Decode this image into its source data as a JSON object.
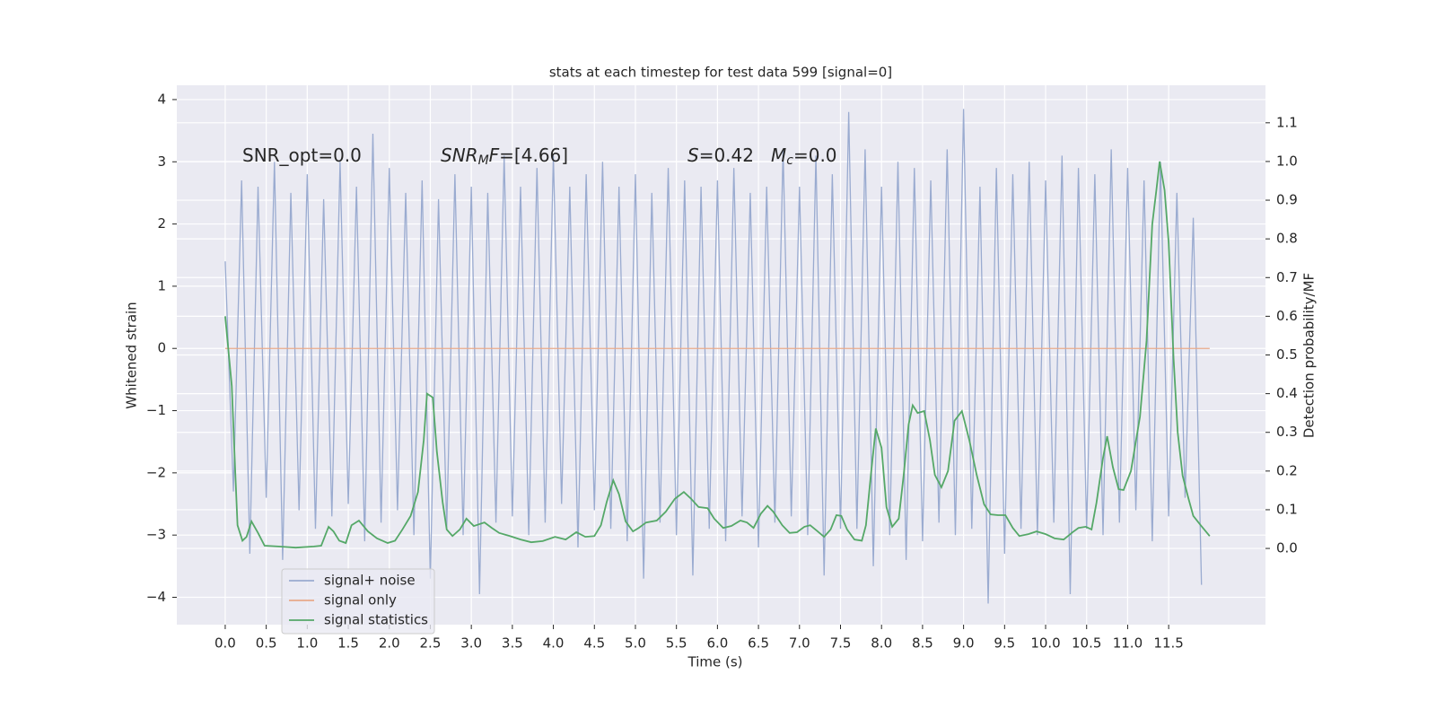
{
  "chart_data": {
    "type": "line",
    "title": "stats at each timestep for test data 599 [signal=0]",
    "x_label": "Time (s)",
    "y_label": "Whitened strain",
    "y2_label": "Detection probability/MF",
    "xlim": [
      -0.59,
      12.68
    ],
    "ylim": [
      -4.44,
      4.23
    ],
    "y2lim": [
      -0.197,
      1.197
    ],
    "xticks": [
      {
        "value": 0,
        "label": "0.0"
      },
      0.5,
      {
        "value": 1,
        "label": "1.0"
      },
      1.5,
      {
        "value": 2,
        "label": "2.0"
      },
      2.5,
      {
        "value": 3,
        "label": "3.0"
      },
      3.5,
      {
        "value": 4,
        "label": "4.0"
      },
      4.5,
      {
        "value": 5,
        "label": "5.0"
      },
      5.5,
      {
        "value": 6,
        "label": "6.0"
      },
      6.5,
      {
        "value": 7,
        "label": "7.0"
      },
      7.5,
      {
        "value": 8,
        "label": "8.0"
      },
      8.5,
      {
        "value": 9,
        "label": "9.0"
      },
      9.5,
      {
        "value": 10,
        "label": "10.0"
      },
      10.5,
      {
        "value": 11,
        "label": "11.0"
      },
      11.5
    ],
    "yticks": [
      {
        "value": -4,
        "label": "−4"
      },
      {
        "value": -3,
        "label": "−3"
      },
      {
        "value": -2,
        "label": "−2"
      },
      {
        "value": -1,
        "label": "−1"
      },
      0,
      1,
      2,
      3,
      4
    ],
    "y2ticks": [
      {
        "value": 0,
        "label": "0.0"
      },
      0.1,
      0.2,
      0.3,
      0.4,
      0.5,
      0.6,
      0.7,
      0.8,
      0.9,
      {
        "value": 1,
        "label": "1.0"
      },
      1.1
    ],
    "grid": true,
    "legend": "lower left",
    "annotations": [
      {
        "parts": [
          {
            "text": "SNR_opt=0.0"
          }
        ]
      },
      {
        "parts": [
          {
            "text": "SNR",
            "italic": true
          },
          {
            "text": "M",
            "italic": true,
            "sub": true
          },
          {
            "text": "F",
            "italic": true
          },
          {
            "text": "=[4.66]"
          }
        ]
      },
      {
        "parts": [
          {
            "text": "S",
            "italic": true
          },
          {
            "text": "=0.42"
          }
        ]
      },
      {
        "parts": [
          {
            "text": "M",
            "italic": true
          },
          {
            "text": "c",
            "italic": true,
            "sub": true
          },
          {
            "text": "=0.0"
          }
        ]
      }
    ],
    "series": [
      {
        "name": "signal+ noise",
        "color": "#9aabd0",
        "axis": "y",
        "x": [
          0.0,
          0.1,
          0.2,
          0.3,
          0.4,
          0.5,
          0.6,
          0.7,
          0.8,
          0.9,
          1.0,
          1.1,
          1.2,
          1.3,
          1.4,
          1.5,
          1.6,
          1.7,
          1.8,
          1.9,
          2.0,
          2.1,
          2.2,
          2.3,
          2.4,
          2.5,
          2.6,
          2.7,
          2.8,
          2.9,
          3.0,
          3.1,
          3.2,
          3.3,
          3.4,
          3.5,
          3.6,
          3.7,
          3.8,
          3.9,
          4.0,
          4.1,
          4.2,
          4.3,
          4.4,
          4.5,
          4.6,
          4.7,
          4.8,
          4.9,
          5.0,
          5.1,
          5.2,
          5.3,
          5.4,
          5.5,
          5.6,
          5.7,
          5.8,
          5.9,
          6.0,
          6.1,
          6.2,
          6.3,
          6.4,
          6.5,
          6.6,
          6.7,
          6.8,
          6.9,
          7.0,
          7.1,
          7.2,
          7.3,
          7.4,
          7.5,
          7.6,
          7.7,
          7.8,
          7.9,
          8.0,
          8.1,
          8.2,
          8.3,
          8.4,
          8.5,
          8.6,
          8.7,
          8.8,
          8.9,
          9.0,
          9.1,
          9.2,
          9.3,
          9.4,
          9.5,
          9.6,
          9.7,
          9.8,
          9.9,
          10.0,
          10.1,
          10.2,
          10.3,
          10.4,
          10.5,
          10.6,
          10.7,
          10.8,
          10.9,
          11.0,
          11.1,
          11.2,
          11.3,
          11.4,
          11.5,
          11.6,
          11.7,
          11.8,
          11.9
        ],
        "values": [
          1.4,
          -2.3,
          2.7,
          -3.3,
          2.6,
          -2.4,
          3.0,
          -3.4,
          2.5,
          -2.6,
          2.8,
          -2.9,
          2.4,
          -2.7,
          3.0,
          -2.5,
          2.6,
          -3.1,
          3.45,
          -2.8,
          2.9,
          -2.6,
          2.5,
          -3.0,
          2.7,
          -3.7,
          2.4,
          -2.9,
          2.8,
          -3.0,
          2.6,
          -3.95,
          2.5,
          -2.8,
          3.1,
          -2.7,
          2.6,
          -3.0,
          2.9,
          -2.8,
          3.1,
          -2.5,
          2.6,
          -3.2,
          2.8,
          -2.6,
          3.0,
          -2.9,
          2.6,
          -3.1,
          2.8,
          -3.7,
          2.5,
          -2.8,
          2.9,
          -3.0,
          2.7,
          -3.65,
          2.6,
          -2.9,
          2.7,
          -3.1,
          2.9,
          -2.7,
          2.5,
          -3.2,
          2.6,
          -2.8,
          3.2,
          -2.7,
          2.6,
          -3.0,
          3.1,
          -3.65,
          2.8,
          -2.9,
          3.8,
          -2.9,
          3.2,
          -3.5,
          2.6,
          -3.0,
          3.0,
          -3.4,
          2.9,
          -3.1,
          2.7,
          -2.8,
          3.2,
          -3.0,
          3.85,
          -2.9,
          2.6,
          -4.1,
          2.9,
          -3.3,
          2.8,
          -2.9,
          3.0,
          -3.0,
          2.7,
          -2.8,
          3.1,
          -3.95,
          2.9,
          -2.9,
          2.8,
          -3.0,
          3.2,
          -2.8,
          2.9,
          -2.6,
          2.7,
          -3.1,
          3.0,
          -2.7,
          2.5,
          -2.4,
          2.1,
          -3.8
        ]
      },
      {
        "name": "signal only",
        "color": "#e8a98a",
        "axis": "y",
        "x": [
          0.0,
          12.0
        ],
        "values": [
          0,
          0
        ]
      },
      {
        "name": "signal statistics",
        "color": "#55a868",
        "axis": "y2",
        "x": [
          0.0,
          0.08,
          0.12,
          0.15,
          0.21,
          0.26,
          0.32,
          0.4,
          0.48,
          0.65,
          0.86,
          1.08,
          1.17,
          1.26,
          1.32,
          1.39,
          1.47,
          1.54,
          1.63,
          1.74,
          1.85,
          1.98,
          2.07,
          2.16,
          2.26,
          2.35,
          2.42,
          2.46,
          2.53,
          2.58,
          2.65,
          2.7,
          2.77,
          2.86,
          2.94,
          3.03,
          3.16,
          3.25,
          3.34,
          3.47,
          3.6,
          3.73,
          3.87,
          4.02,
          4.15,
          4.28,
          4.39,
          4.5,
          4.58,
          4.65,
          4.73,
          4.8,
          4.88,
          4.97,
          5.04,
          5.13,
          5.26,
          5.37,
          5.48,
          5.59,
          5.68,
          5.77,
          5.88,
          5.96,
          6.07,
          6.17,
          6.28,
          6.36,
          6.44,
          6.53,
          6.61,
          6.68,
          6.79,
          6.88,
          6.97,
          7.06,
          7.13,
          7.21,
          7.3,
          7.38,
          7.45,
          7.51,
          7.58,
          7.67,
          7.76,
          7.81,
          7.87,
          7.93,
          8.0,
          8.06,
          8.13,
          8.21,
          8.27,
          8.33,
          8.38,
          8.44,
          8.52,
          8.59,
          8.65,
          8.73,
          8.81,
          8.89,
          8.98,
          9.07,
          9.16,
          9.25,
          9.33,
          9.42,
          9.51,
          9.6,
          9.68,
          9.79,
          9.89,
          10.0,
          10.11,
          10.22,
          10.33,
          10.4,
          10.49,
          10.56,
          10.62,
          10.7,
          10.75,
          10.82,
          10.89,
          10.95,
          11.04,
          11.15,
          11.23,
          11.3,
          11.35,
          11.39,
          11.45,
          11.5,
          11.56,
          11.61,
          11.67,
          11.74,
          11.8,
          11.89,
          12.0
        ],
        "values": [
          0.6,
          0.42,
          0.21,
          0.06,
          0.02,
          0.03,
          0.07,
          0.04,
          0.007,
          0.005,
          0.002,
          0.005,
          0.007,
          0.056,
          0.044,
          0.02,
          0.014,
          0.06,
          0.072,
          0.044,
          0.026,
          0.014,
          0.02,
          0.049,
          0.084,
          0.146,
          0.28,
          0.4,
          0.39,
          0.25,
          0.12,
          0.049,
          0.032,
          0.049,
          0.077,
          0.058,
          0.067,
          0.053,
          0.04,
          0.032,
          0.023,
          0.016,
          0.019,
          0.03,
          0.023,
          0.042,
          0.03,
          0.032,
          0.06,
          0.12,
          0.176,
          0.14,
          0.07,
          0.044,
          0.053,
          0.067,
          0.072,
          0.095,
          0.128,
          0.146,
          0.128,
          0.107,
          0.104,
          0.077,
          0.053,
          0.058,
          0.072,
          0.067,
          0.053,
          0.09,
          0.11,
          0.095,
          0.06,
          0.04,
          0.042,
          0.056,
          0.06,
          0.046,
          0.03,
          0.049,
          0.086,
          0.084,
          0.049,
          0.023,
          0.02,
          0.06,
          0.19,
          0.31,
          0.26,
          0.107,
          0.056,
          0.077,
          0.19,
          0.32,
          0.37,
          0.35,
          0.355,
          0.28,
          0.19,
          0.158,
          0.2,
          0.33,
          0.355,
          0.28,
          0.19,
          0.114,
          0.088,
          0.086,
          0.086,
          0.053,
          0.032,
          0.037,
          0.044,
          0.037,
          0.026,
          0.023,
          0.042,
          0.053,
          0.056,
          0.049,
          0.118,
          0.234,
          0.29,
          0.21,
          0.153,
          0.151,
          0.2,
          0.34,
          0.536,
          0.838,
          0.926,
          1.0,
          0.926,
          0.79,
          0.49,
          0.3,
          0.188,
          0.13,
          0.084,
          0.06,
          0.032
        ]
      }
    ]
  }
}
